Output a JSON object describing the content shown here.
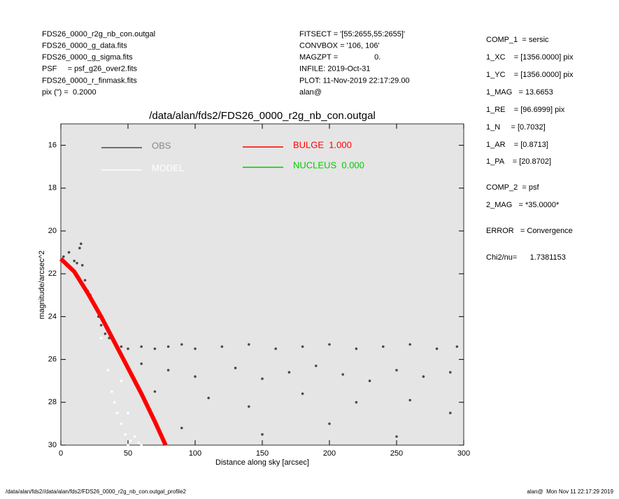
{
  "header": {
    "left": [
      "FDS26_0000_r2g_nb_con.outgal",
      "FDS26_0000_g_data.fits",
      "FDS26_0000_g_sigma.fits",
      "PSF     = psf_g26_over2.fits",
      "FDS26_0000_r_finmask.fits",
      "pix (\") =  0.2000"
    ],
    "center": [
      "FITSECT = '[55:2655,55:2655]'",
      "CONVBOX = '106, 106'",
      "MAGZPT =                 0.",
      "INFILE: 2019-Oct-31",
      "PLOT: 11-Nov-2019 22:17:29.00",
      "alan@"
    ]
  },
  "params": [
    "COMP_1  = sersic",
    "1_XC    = [1356.0000] pix",
    "1_YC    = [1356.0000] pix",
    "1_MAG   = 13.6653",
    "1_RE    = [96.6999] pix",
    "1_N     = [0.7032]",
    "1_AR    = [0.8713]",
    "1_PA    = [20.8702]",
    "COMP_2  = psf",
    "2_MAG   = *35.0000*",
    "ERROR   = Convergence",
    "Chi2/nu=      1.7381153"
  ],
  "footer": {
    "left": "/data/alan/fds2//data/alan/fds2/FDS26_0000_r2g_nb_con.outgal_profile2",
    "right": "alan@  Mon Nov 11 22:17:29 2019"
  },
  "chart_data": {
    "type": "scatter",
    "title": "/data/alan/fds2/FDS26_0000_r2g_nb_con.outgal",
    "x_label": "Distance along sky [arcsec]",
    "y_label": "magnitude/arcsec^2",
    "xlim": [
      0,
      300
    ],
    "ylim": [
      30,
      15
    ],
    "xticks": [
      0,
      50,
      100,
      150,
      200,
      250,
      300
    ],
    "yticks": [
      16,
      18,
      20,
      22,
      24,
      26,
      28,
      30
    ],
    "background": "#e5e5e5",
    "series": [
      {
        "name": "OBS",
        "color": "#4a4a4a",
        "mark": "points",
        "x": [
          2,
          4,
          6,
          8,
          10,
          12,
          14,
          15,
          16,
          18,
          20,
          22,
          25,
          28,
          30,
          33,
          36,
          40,
          45,
          50,
          60,
          70,
          80,
          90,
          100,
          120,
          140,
          160,
          180,
          200,
          220,
          240,
          260,
          280,
          295,
          60,
          80,
          100,
          130,
          150,
          170,
          190,
          210,
          230,
          250,
          270,
          290,
          70,
          110,
          140,
          180,
          220,
          260,
          290,
          90,
          150,
          200,
          250
        ],
        "values": [
          21.2,
          21.6,
          21.0,
          21.8,
          21.4,
          21.5,
          20.8,
          20.6,
          21.6,
          22.3,
          22.8,
          23.0,
          23.5,
          24.0,
          24.4,
          24.8,
          25.0,
          25.2,
          25.4,
          25.5,
          25.4,
          25.5,
          25.4,
          25.3,
          25.5,
          25.4,
          25.3,
          25.5,
          25.4,
          25.3,
          25.5,
          25.4,
          25.3,
          25.5,
          25.4,
          26.2,
          26.5,
          26.8,
          26.4,
          26.9,
          26.6,
          26.3,
          26.7,
          27.0,
          26.5,
          26.8,
          26.6,
          27.5,
          27.8,
          28.2,
          27.6,
          28.0,
          27.9,
          28.5,
          29.2,
          29.5,
          29.0,
          29.6
        ]
      },
      {
        "name": "MODEL",
        "color": "#ffffff",
        "mark": "points",
        "x": [
          25,
          30,
          35,
          38,
          40,
          42,
          45,
          48,
          50,
          52,
          55,
          58,
          60,
          45,
          50
        ],
        "values": [
          23.5,
          25,
          26.5,
          27.5,
          28,
          28.5,
          29,
          29.5,
          30,
          29.8,
          29.6,
          29.9,
          30,
          27,
          28.5
        ]
      },
      {
        "name": "BULGE  1.000",
        "color": "#ff0000",
        "mark": "line",
        "x": [
          0,
          10,
          20,
          30,
          40,
          50,
          60,
          70,
          78
        ],
        "values": [
          21.3,
          21.9,
          22.9,
          24.0,
          25.2,
          26.4,
          27.6,
          28.9,
          30
        ]
      },
      {
        "name": "NUCLEUS  0.000",
        "color": "#00cc00",
        "mark": "line",
        "x": [],
        "values": []
      }
    ]
  }
}
